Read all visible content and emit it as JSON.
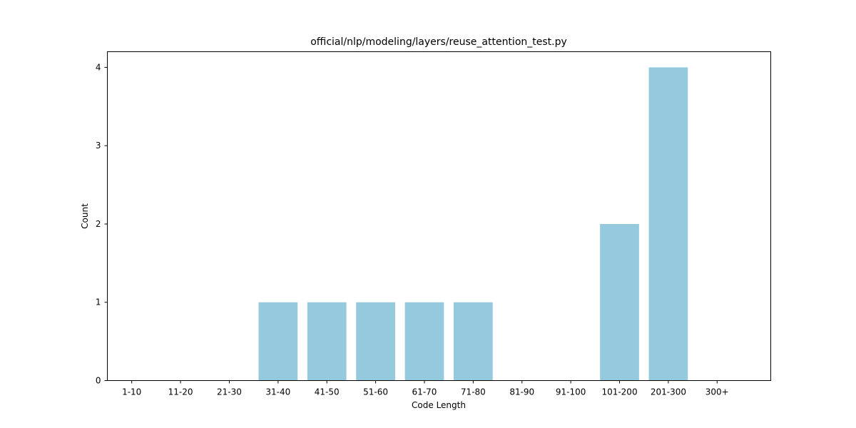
{
  "chart_data": {
    "type": "bar",
    "title": "official/nlp/modeling/layers/reuse_attention_test.py",
    "xlabel": "Code Length",
    "ylabel": "Count",
    "categories": [
      "1-10",
      "11-20",
      "21-30",
      "31-40",
      "41-50",
      "51-60",
      "61-70",
      "71-80",
      "81-90",
      "91-100",
      "101-200",
      "201-300",
      "300+"
    ],
    "values": [
      0,
      0,
      0,
      1,
      1,
      1,
      1,
      1,
      0,
      0,
      2,
      4,
      0
    ],
    "ylim": [
      0,
      4.2
    ],
    "yticks": [
      0,
      1,
      2,
      3,
      4
    ],
    "bar_color": "#95c9dd",
    "grid": false,
    "legend": "none"
  }
}
